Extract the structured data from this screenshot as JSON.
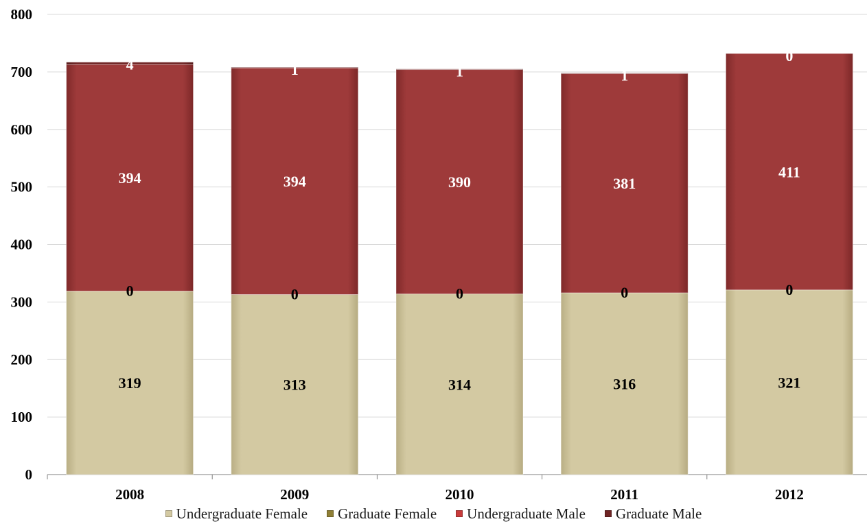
{
  "colors": {
    "undergraduate_female": "#d3c9a2",
    "graduate_female": "#8f7f35",
    "undergraduate_male": "#9e3a3a",
    "graduate_male": "#6f2424",
    "grid": "#d9d9d9",
    "axis": "#808080",
    "text_dark": "#000000",
    "text_light": "#ffffff"
  },
  "chart_data": {
    "type": "bar",
    "stacked": true,
    "categories": [
      "2008",
      "2009",
      "2010",
      "2011",
      "2012"
    ],
    "series": [
      {
        "name": "Undergraduate Female",
        "values": [
          319,
          313,
          314,
          316,
          321
        ]
      },
      {
        "name": "Graduate Female",
        "values": [
          0,
          0,
          0,
          0,
          0
        ]
      },
      {
        "name": "Undergraduate Male",
        "values": [
          394,
          394,
          390,
          381,
          411
        ]
      },
      {
        "name": "Graduate Male",
        "values": [
          4,
          1,
          1,
          1,
          0
        ]
      }
    ],
    "ylim": [
      0,
      800
    ],
    "yticks": [
      0,
      100,
      200,
      300,
      400,
      500,
      600,
      700,
      800
    ],
    "grid": true,
    "legend_position": "bottom"
  }
}
